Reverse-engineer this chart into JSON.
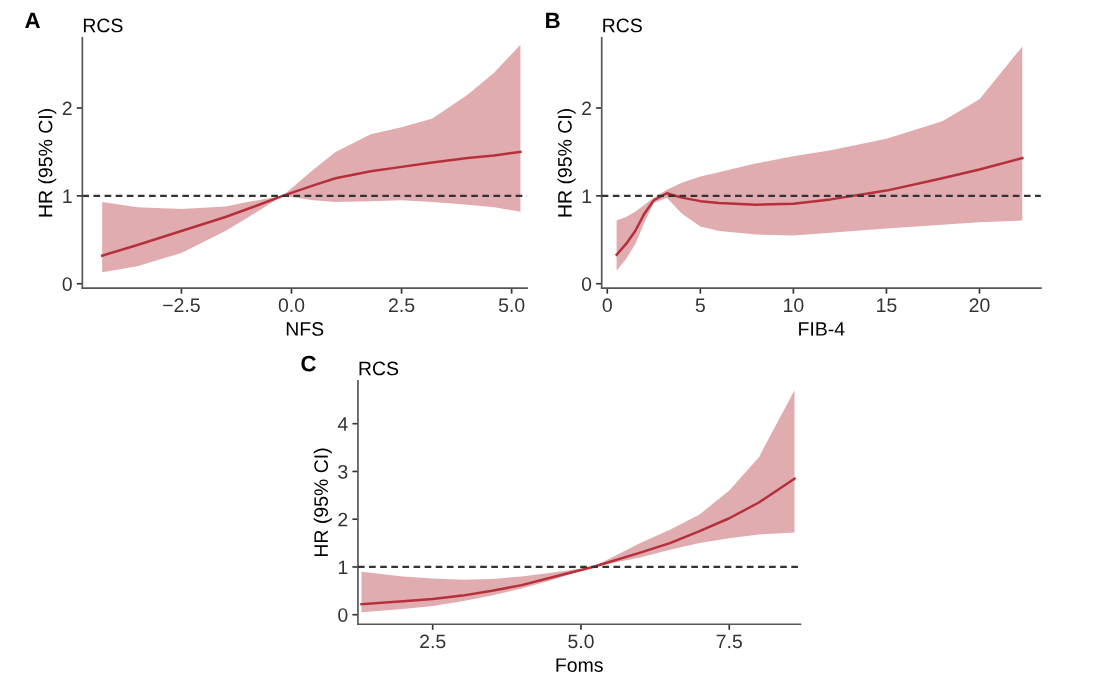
{
  "chart_data": [
    {
      "type": "line",
      "title": "RCS",
      "annotations": [
        "A"
      ],
      "xlabel": "NFS",
      "ylabel": "HR (95% CI)",
      "xlim": [
        -4.75,
        5.35
      ],
      "ylim": [
        -0.05,
        2.8
      ],
      "xticks": [
        {
          "value": -2.5,
          "label": "−2.5"
        },
        {
          "value": 0,
          "label": "0.0"
        },
        {
          "value": 2.5,
          "label": "2.5"
        },
        {
          "value": 5,
          "label": "5.0"
        }
      ],
      "yticks": [
        0,
        1,
        2
      ],
      "grid": false,
      "ref_lines": [
        {
          "axis": "y",
          "value": 1,
          "color": "#333333",
          "line_style": "dashed"
        }
      ],
      "series": [
        {
          "color": "#b5303a",
          "x": [
            -4.3,
            -3.5,
            -2.5,
            -1.5,
            -1,
            -0.2,
            0.5,
            1,
            1.8,
            2.5,
            3.2,
            4,
            4.6,
            5.2
          ],
          "values": [
            0.32,
            0.44,
            0.6,
            0.76,
            0.85,
            1.0,
            1.12,
            1.2,
            1.28,
            1.33,
            1.38,
            1.43,
            1.46,
            1.5
          ],
          "lower": [
            0.13,
            0.2,
            0.35,
            0.6,
            0.75,
            1.0,
            0.95,
            0.93,
            0.94,
            0.95,
            0.93,
            0.9,
            0.87,
            0.82
          ],
          "upper": [
            0.93,
            0.87,
            0.85,
            0.88,
            0.93,
            1.0,
            1.3,
            1.5,
            1.7,
            1.78,
            1.88,
            2.15,
            2.4,
            2.72
          ]
        }
      ]
    },
    {
      "type": "line",
      "title": "RCS",
      "annotations": [
        "B"
      ],
      "xlabel": "FIB-4",
      "ylabel": "HR (95% CI)",
      "xlim": [
        -0.3,
        23.3
      ],
      "ylim": [
        -0.05,
        2.8
      ],
      "xticks": [
        0,
        5,
        10,
        15,
        20
      ],
      "yticks": [
        0,
        1,
        2
      ],
      "grid": false,
      "ref_lines": [
        {
          "axis": "y",
          "value": 1,
          "color": "#333333",
          "line_style": "dashed"
        }
      ],
      "series": [
        {
          "color": "#b5303a",
          "x": [
            0.5,
            1,
            1.5,
            2,
            2.5,
            3.2,
            4,
            5,
            6,
            8,
            10,
            12,
            15,
            18,
            20,
            22.3
          ],
          "values": [
            0.33,
            0.45,
            0.6,
            0.8,
            0.95,
            1.03,
            0.98,
            0.94,
            0.92,
            0.9,
            0.91,
            0.96,
            1.06,
            1.2,
            1.3,
            1.43
          ],
          "lower": [
            0.15,
            0.28,
            0.45,
            0.7,
            0.92,
            0.98,
            0.8,
            0.65,
            0.6,
            0.56,
            0.55,
            0.58,
            0.63,
            0.67,
            0.7,
            0.72
          ],
          "upper": [
            0.72,
            0.76,
            0.82,
            0.9,
            0.98,
            1.07,
            1.15,
            1.22,
            1.27,
            1.37,
            1.45,
            1.52,
            1.65,
            1.85,
            2.1,
            2.7
          ]
        }
      ]
    },
    {
      "type": "line",
      "title": "RCS",
      "annotations": [
        "C"
      ],
      "xlabel": "Foms",
      "ylabel": "HR (95% CI)",
      "xlim": [
        1.24,
        8.7
      ],
      "ylim": [
        -0.2,
        4.9
      ],
      "xticks": [
        {
          "value": 2.5,
          "label": "2.5"
        },
        {
          "value": 5,
          "label": "5.0"
        },
        {
          "value": 7.5,
          "label": "7.5"
        }
      ],
      "yticks": [
        0,
        1,
        2,
        3,
        4
      ],
      "grid": false,
      "ref_lines": [
        {
          "axis": "y",
          "value": 1,
          "color": "#333333",
          "line_style": "dashed"
        }
      ],
      "series": [
        {
          "color": "#b5303a",
          "x": [
            1.3,
            2,
            2.5,
            3,
            3.5,
            4,
            4.5,
            5.2,
            6,
            6.5,
            7,
            7.5,
            8,
            8.6
          ],
          "values": [
            0.22,
            0.28,
            0.33,
            0.4,
            0.5,
            0.62,
            0.78,
            1.0,
            1.3,
            1.5,
            1.75,
            2.02,
            2.35,
            2.85
          ],
          "lower": [
            0.05,
            0.12,
            0.18,
            0.28,
            0.4,
            0.55,
            0.72,
            1.0,
            1.2,
            1.36,
            1.5,
            1.6,
            1.68,
            1.72
          ],
          "upper": [
            0.9,
            0.8,
            0.76,
            0.73,
            0.75,
            0.8,
            0.88,
            1.0,
            1.5,
            1.78,
            2.1,
            2.6,
            3.3,
            4.7
          ]
        }
      ]
    }
  ]
}
